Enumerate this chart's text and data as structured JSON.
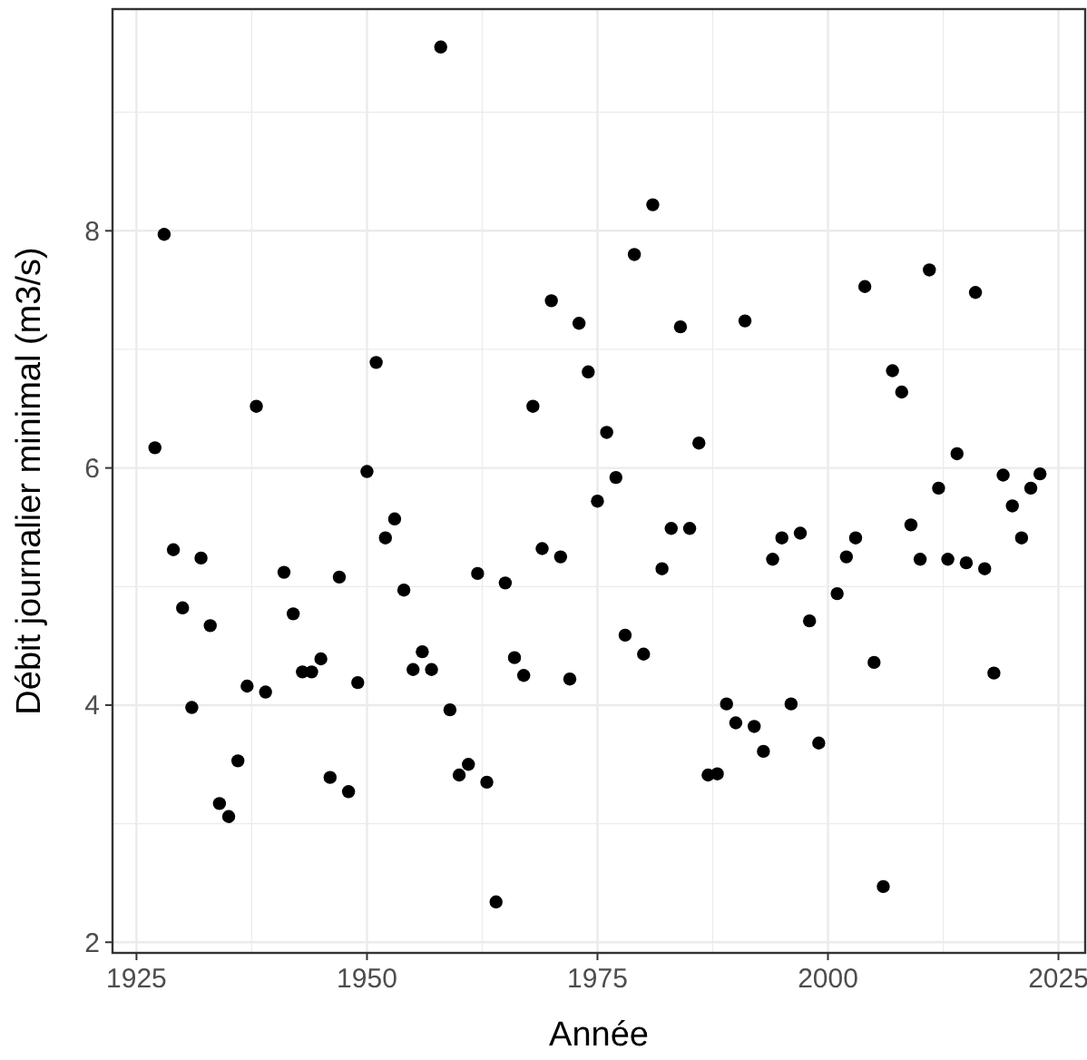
{
  "chart_data": {
    "type": "scatter",
    "xlabel": "Année",
    "ylabel": "Débit journalier minimal (m3/s)",
    "xlim": [
      1922.4,
      2027.9
    ],
    "ylim": [
      1.91,
      9.87
    ],
    "xticks": [
      1925,
      1950,
      1975,
      2000,
      2025
    ],
    "yticks": [
      2,
      4,
      6,
      8
    ],
    "grid": true,
    "marker": "circle",
    "series": [
      {
        "color": "#000000",
        "x": [
          1927,
          1928,
          1929,
          1930,
          1931,
          1932,
          1933,
          1934,
          1935,
          1936,
          1937,
          1938,
          1939,
          1941,
          1942,
          1943,
          1944,
          1945,
          1946,
          1947,
          1948,
          1949,
          1950,
          1951,
          1952,
          1953,
          1954,
          1955,
          1956,
          1957,
          1958,
          1959,
          1960,
          1961,
          1962,
          1963,
          1964,
          1965,
          1966,
          1967,
          1968,
          1969,
          1970,
          1971,
          1972,
          1973,
          1974,
          1975,
          1976,
          1977,
          1978,
          1979,
          1980,
          1981,
          1982,
          1983,
          1984,
          1985,
          1986,
          1987,
          1988,
          1989,
          1990,
          1991,
          1992,
          1993,
          1994,
          1995,
          1996,
          1997,
          1998,
          1999,
          2001,
          2002,
          2003,
          2004,
          2005,
          2006,
          2007,
          2008,
          2009,
          2010,
          2011,
          2012,
          2013,
          2014,
          2015,
          2016,
          2017,
          2018,
          2019,
          2020,
          2021,
          2022,
          2023
        ],
        "values": [
          6.17,
          7.97,
          5.31,
          4.82,
          3.98,
          5.24,
          4.67,
          3.17,
          3.06,
          3.53,
          4.16,
          6.52,
          4.11,
          5.12,
          4.77,
          4.28,
          4.28,
          4.39,
          3.39,
          5.08,
          3.27,
          4.19,
          5.97,
          6.89,
          5.41,
          5.57,
          4.97,
          4.3,
          4.45,
          4.3,
          9.55,
          3.96,
          3.41,
          3.5,
          5.11,
          3.35,
          2.34,
          5.03,
          4.4,
          4.25,
          6.52,
          5.32,
          7.41,
          5.25,
          4.22,
          7.22,
          6.81,
          5.72,
          6.3,
          5.92,
          4.59,
          7.8,
          4.43,
          8.22,
          5.15,
          5.49,
          7.19,
          5.49,
          6.21,
          3.41,
          3.42,
          4.01,
          3.85,
          7.24,
          3.82,
          3.61,
          5.23,
          5.41,
          4.01,
          5.45,
          4.71,
          3.68,
          4.94,
          5.25,
          5.41,
          7.53,
          4.36,
          2.47,
          6.82,
          6.64,
          5.52,
          5.23,
          7.67,
          5.83,
          5.23,
          6.12,
          5.2,
          7.48,
          5.15,
          4.27,
          5.94,
          5.68,
          5.41,
          5.83,
          5.95
        ]
      }
    ]
  }
}
